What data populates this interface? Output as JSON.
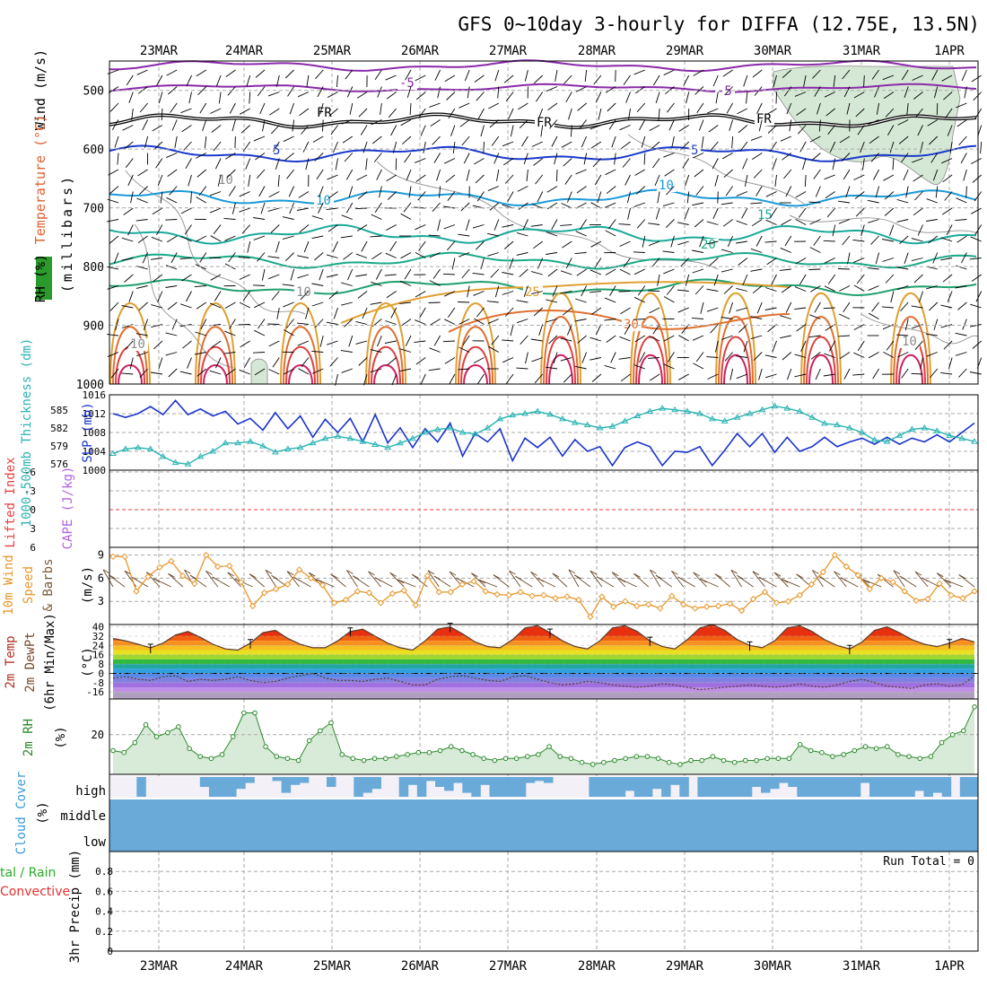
{
  "title": "GFS 0~10day 3-hourly for DIFFA (12.75E, 13.5N)",
  "dates": [
    "23MAR",
    "24MAR",
    "25MAR",
    "26MAR",
    "27MAR",
    "28MAR",
    "29MAR",
    "30MAR",
    "31MAR",
    "1APR"
  ],
  "run_total": "Run Total = 0",
  "colors": {
    "slp": "#1a33cc",
    "thickness": "#2ab3b3",
    "wind_speed": "#e8962a",
    "lifted": "#e84040",
    "cape": "#b060e0",
    "rh2m": "#2a8a2a",
    "rh_fill": "#d8ead8",
    "cloud": "#6aaad8",
    "cloud_bg": "#f4f0f8",
    "grid": "#aaaaaa"
  },
  "chart_data": [
    {
      "type": "heatmap",
      "ylabel": "Temperature (°C)  Wind (m/s)  RH (%)  (millibars)",
      "y_ticks": [
        "500",
        "600",
        "700",
        "800",
        "900",
        "1000"
      ],
      "isotherm_labels": [
        "-5",
        "-5",
        "FR",
        "FR",
        "FR",
        "5",
        "5",
        "10",
        "10",
        "15",
        "20",
        "25",
        "30",
        "10",
        "10",
        "10",
        "10"
      ],
      "ylim": [
        450,
        1000
      ]
    },
    {
      "type": "line",
      "ylabel_left": "1000-500mb Thickness (dm)",
      "ylabel_right": "SLP (mb)",
      "left_ticks": [
        "585",
        "582",
        "579",
        "576"
      ],
      "right_ticks": [
        "1016",
        "1012",
        "1008",
        "1004",
        "1000"
      ],
      "ylim": [
        1000,
        1016
      ],
      "series": [
        {
          "name": "SLP (mb)",
          "values": [
            1012.0,
            1011.2,
            1012.0,
            1013.5,
            1011.8,
            1014.8,
            1011.8,
            1013.0,
            1011.5,
            1012.5,
            1009.8,
            1011.0,
            1008.5,
            1012.2,
            1008.8,
            1011.5,
            1007.0,
            1010.8,
            1008.0,
            1011.0,
            1006.0,
            1011.8,
            1005.8,
            1009.0,
            1004.8,
            1008.8,
            1006.0,
            1010.0,
            1003.0,
            1007.8,
            1006.0,
            1008.8,
            1002.0,
            1006.8,
            1004.8,
            1007.0,
            1003.0,
            1006.5,
            1004.0,
            1005.0,
            1001.0,
            1004.8,
            1006.0,
            1005.0,
            1001.0,
            1004.0,
            1003.8,
            1005.0,
            1001.0,
            1004.2,
            1007.8,
            1005.0,
            1007.8,
            1003.8,
            1007.0,
            1004.0,
            1005.0,
            1007.0,
            1005.0,
            1006.0,
            1006.8,
            1005.5,
            1007.0,
            1005.5,
            1006.8,
            1006.0,
            1007.5,
            1006.0,
            1008.0,
            1010.0
          ]
        },
        {
          "name": "1000-500mb Thickness (dm)",
          "values": [
            578.2,
            578.8,
            579.0,
            578.8,
            577.8,
            577.0,
            576.8,
            577.8,
            578.5,
            579.6,
            579.6,
            579.8,
            579.2,
            578.4,
            578.8,
            579.0,
            579.6,
            580.2,
            580.5,
            580.2,
            579.8,
            579.4,
            579.0,
            579.6,
            580.2,
            581.0,
            581.4,
            581.6,
            581.0,
            580.8,
            581.6,
            582.8,
            583.3,
            583.5,
            583.8,
            583.4,
            582.8,
            582.3,
            582.0,
            581.6,
            581.8,
            582.5,
            583.2,
            583.8,
            584.2,
            584.0,
            583.8,
            583.5,
            582.8,
            582.5,
            583.0,
            583.5,
            584.0,
            584.5,
            584.2,
            583.8,
            583.0,
            582.2,
            582.0,
            581.6,
            581.0,
            580.0,
            579.8,
            580.6,
            581.4,
            581.6,
            581.2,
            580.6,
            580.2,
            579.8
          ]
        }
      ]
    },
    {
      "type": "line",
      "ylabel_left": "Lifted Index",
      "ylabel_right": "CAPE (J/kg)",
      "ticks": [
        "-6",
        "-3",
        "0",
        "3",
        "6"
      ],
      "ylim": [
        -6,
        6
      ],
      "series": [
        {
          "name": "Lifted Index",
          "values": []
        }
      ]
    },
    {
      "type": "line",
      "ylabel": "10m Wind Speed & Barbs (m/s)",
      "ticks": [
        "9",
        "6",
        "3"
      ],
      "ylim": [
        0,
        10
      ],
      "series": [
        {
          "name": "Speed",
          "values": [
            8.8,
            8.8,
            4.3,
            6.2,
            7.4,
            8.2,
            6.3,
            5.3,
            9.0,
            7.5,
            7.6,
            5.5,
            2.4,
            4.1,
            4.6,
            5.2,
            7.1,
            6.0,
            5.1,
            2.8,
            3.2,
            4.3,
            4.1,
            2.8,
            4.0,
            4.4,
            2.5,
            6.3,
            4.2,
            4.2,
            5.2,
            5.6,
            4.3,
            3.9,
            3.8,
            4.2,
            3.7,
            3.8,
            3.4,
            3.6,
            3.2,
            1.0,
            3.6,
            2.3,
            3.0,
            2.4,
            2.6,
            2.1,
            3.7,
            2.6,
            2.1,
            2.3,
            2.4,
            2.7,
            1.8,
            3.3,
            4.2,
            2.8,
            3.0,
            3.8,
            5.2,
            6.8,
            9.0,
            7.5,
            6.4,
            4.6,
            6.0,
            5.5,
            4.3,
            3.1,
            3.3,
            5.3,
            3.8,
            3.4,
            4.3
          ]
        }
      ]
    },
    {
      "type": "area",
      "ylabel": "2m Temp 2m DewPt (6hr Min/Max) (°C)",
      "ticks": [
        "40",
        "32",
        "24",
        "16",
        "8",
        "0",
        "-8",
        "-16"
      ],
      "ylim": [
        -22,
        42
      ],
      "series": [
        {
          "name": "2m Temp",
          "values": [
            30,
            28,
            25,
            22,
            26,
            33,
            36,
            31,
            25,
            21,
            20,
            26,
            35,
            37,
            30,
            25,
            22,
            22,
            28,
            36,
            38,
            32,
            26,
            22,
            20,
            28,
            38,
            40,
            34,
            27,
            23,
            22,
            29,
            39,
            41,
            35,
            28,
            23,
            21,
            28,
            39,
            41,
            36,
            28,
            23,
            21,
            29,
            39,
            42,
            37,
            29,
            24,
            22,
            28,
            39,
            41,
            36,
            29,
            24,
            21,
            27,
            37,
            40,
            35,
            29,
            25,
            23,
            26,
            30,
            27
          ]
        },
        {
          "name": "2m DewPt",
          "values": [
            -4,
            -3,
            -5,
            -6,
            -3,
            -2,
            -7,
            -5,
            -6,
            -5,
            -3,
            -6,
            -8,
            -7,
            -4,
            -2,
            0,
            -4,
            -6,
            -6,
            -7,
            -5,
            -4,
            -7,
            -10,
            -10,
            -5,
            -3,
            -2,
            -4,
            -6,
            -7,
            -3,
            -2,
            -5,
            -8,
            -10,
            -9,
            -7,
            -8,
            -10,
            -11,
            -12,
            -11,
            -9,
            -10,
            -12,
            -14,
            -13,
            -12,
            -11,
            -10,
            -11,
            -12,
            -11,
            -9,
            -11,
            -12,
            -10,
            -7,
            -5,
            -8,
            -11,
            -12,
            -13,
            -10,
            -9,
            -11,
            -10,
            -2
          ]
        }
      ]
    },
    {
      "type": "area",
      "ylabel": "2m RH (%)",
      "ticks": [
        "20"
      ],
      "ylim": [
        0,
        38
      ],
      "series": [
        {
          "name": "2m RH",
          "values": [
            12,
            11,
            16,
            25,
            19,
            21,
            24,
            13,
            9,
            8,
            10,
            19,
            31,
            31,
            14,
            9,
            8,
            7,
            17,
            22,
            26,
            10,
            8,
            7,
            8,
            8,
            9,
            10,
            11,
            11,
            12,
            14,
            12,
            10,
            8,
            7,
            8,
            8,
            9,
            10,
            14,
            9,
            8,
            6,
            5,
            6,
            7,
            8,
            9,
            9,
            8,
            6,
            5,
            7,
            7,
            9,
            7,
            6,
            7,
            7,
            8,
            8,
            8,
            15,
            12,
            11,
            9,
            10,
            12,
            14,
            13,
            14,
            10,
            9,
            8,
            9,
            16,
            20,
            22,
            34
          ]
        }
      ]
    },
    {
      "type": "bar",
      "ylabel": "Cloud Cover (%)",
      "levels": [
        "high",
        "middle",
        "low"
      ],
      "series": [
        {
          "name": "high",
          "values": [
            0,
            0,
            35,
            20,
            0,
            10,
            0,
            0,
            0,
            0,
            0,
            0,
            0,
            0,
            0,
            0,
            0,
            0,
            0,
            0,
            0,
            0,
            0,
            0,
            0,
            0,
            0,
            0,
            0,
            0,
            0,
            0,
            0,
            0,
            0,
            0,
            0,
            0,
            0,
            0,
            0,
            0,
            0,
            0,
            0,
            0,
            0,
            0,
            0,
            0,
            0,
            0,
            0,
            0,
            0,
            0,
            0,
            0,
            0,
            0,
            0,
            0,
            0,
            0,
            0,
            0,
            0,
            0,
            0,
            0,
            0,
            0,
            0,
            0,
            0,
            0,
            0,
            0,
            0,
            0,
            0,
            0,
            0,
            0,
            0,
            0,
            0,
            0,
            0,
            0,
            0,
            0,
            0,
            0,
            0,
            0
          ]
        }
      ]
    },
    {
      "type": "bar",
      "ylabel": "3hr Precip (mm)",
      "legend": [
        "Total / Rain",
        "Convective"
      ],
      "ticks": [
        "0.8",
        "0.6",
        "0.4",
        "0.2",
        "0"
      ],
      "ylim": [
        0,
        1
      ],
      "series": [
        {
          "name": "Total / Rain",
          "values": []
        }
      ]
    }
  ],
  "labels": {
    "p1_wind": "Wind (m/s)",
    "p1_temp": "Temperature (°C)",
    "p1_rh": "RH (%)",
    "p1_mb": "(millibars)",
    "p2_thick": "1000-500mb Thickness (dm)",
    "p2_slp": "SLP (mb)",
    "p3_li": "Lifted Index",
    "p3_cape": "CAPE (J/kg)",
    "p4_wind": "10m Wind",
    "p4_speed": "Speed",
    "p4_barbs": "& Barbs",
    "p4_units": "(m/s)",
    "p5_a": "2m Temp",
    "p5_b": "2m DewPt",
    "p5_c": "(6hr Min/Max)",
    "p5_d": "(°C)",
    "p6_a": "2m RH",
    "p6_b": "(%)",
    "p7_a": "Cloud Cover",
    "p7_b": "(%)",
    "p8_a": "tal / Rain",
    "p8_b": "Convective",
    "p8_c": "3hr Precip (mm)"
  }
}
